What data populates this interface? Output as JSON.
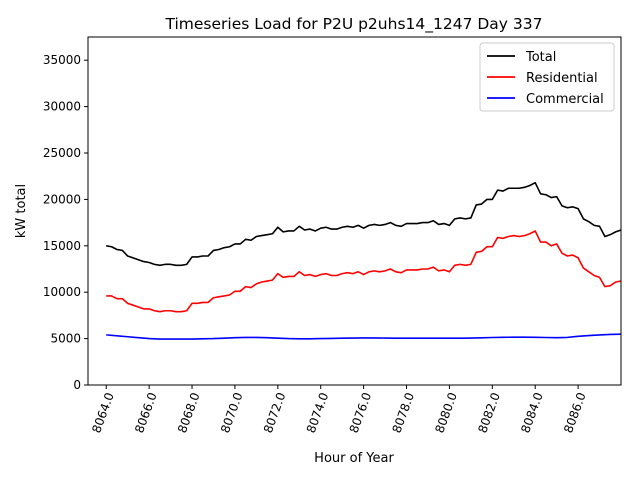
{
  "chart_data": {
    "type": "line",
    "title": "Timeseries Load for P2U p2uhs14_1247  Day 337",
    "xlabel": "Hour of Year",
    "ylabel": "kW total",
    "xlim": [
      8063.15,
      8088.0
    ],
    "ylim": [
      0,
      37500
    ],
    "grid": false,
    "legend_position": "top-right",
    "x_ticks": [
      8064,
      8066,
      8068,
      8070,
      8072,
      8074,
      8076,
      8078,
      8080,
      8082,
      8084,
      8086
    ],
    "x_tick_labels": [
      "8064.0",
      "8066.0",
      "8068.0",
      "8070.0",
      "8072.0",
      "8074.0",
      "8076.0",
      "8078.0",
      "8080.0",
      "8082.0",
      "8084.0",
      "8086.0"
    ],
    "y_ticks": [
      0,
      5000,
      10000,
      15000,
      20000,
      25000,
      30000,
      35000
    ],
    "y_tick_labels": [
      "0",
      "5000",
      "10000",
      "15000",
      "20000",
      "25000",
      "30000",
      "35000"
    ],
    "series": [
      {
        "name": "Total",
        "color": "#000000",
        "points": [
          [
            8064,
            15000
          ],
          [
            8064.25,
            14900
          ],
          [
            8064.5,
            14600
          ],
          [
            8064.75,
            14500
          ],
          [
            8065,
            13900
          ],
          [
            8065.25,
            13700
          ],
          [
            8065.5,
            13500
          ],
          [
            8065.75,
            13300
          ],
          [
            8066,
            13200
          ],
          [
            8066.25,
            13000
          ],
          [
            8066.5,
            12900
          ],
          [
            8066.75,
            13000
          ],
          [
            8067,
            13000
          ],
          [
            8067.25,
            12900
          ],
          [
            8067.5,
            12900
          ],
          [
            8067.75,
            13000
          ],
          [
            8068,
            13800
          ],
          [
            8068.25,
            13800
          ],
          [
            8068.5,
            13900
          ],
          [
            8068.75,
            13900
          ],
          [
            8069,
            14500
          ],
          [
            8069.25,
            14600
          ],
          [
            8069.5,
            14800
          ],
          [
            8069.75,
            14900
          ],
          [
            8070,
            15200
          ],
          [
            8070.25,
            15200
          ],
          [
            8070.5,
            15700
          ],
          [
            8070.75,
            15600
          ],
          [
            8071,
            16000
          ],
          [
            8071.25,
            16100
          ],
          [
            8071.5,
            16200
          ],
          [
            8071.75,
            16300
          ],
          [
            8072,
            17000
          ],
          [
            8072.25,
            16500
          ],
          [
            8072.5,
            16600
          ],
          [
            8072.75,
            16600
          ],
          [
            8073,
            17100
          ],
          [
            8073.25,
            16700
          ],
          [
            8073.5,
            16800
          ],
          [
            8073.75,
            16600
          ],
          [
            8074,
            16900
          ],
          [
            8074.25,
            17000
          ],
          [
            8074.5,
            16800
          ],
          [
            8074.75,
            16800
          ],
          [
            8075,
            17000
          ],
          [
            8075.25,
            17100
          ],
          [
            8075.5,
            17000
          ],
          [
            8075.75,
            17200
          ],
          [
            8076,
            16900
          ],
          [
            8076.25,
            17200
          ],
          [
            8076.5,
            17300
          ],
          [
            8076.75,
            17200
          ],
          [
            8077,
            17300
          ],
          [
            8077.25,
            17500
          ],
          [
            8077.5,
            17200
          ],
          [
            8077.75,
            17100
          ],
          [
            8078,
            17400
          ],
          [
            8078.25,
            17400
          ],
          [
            8078.5,
            17400
          ],
          [
            8078.75,
            17500
          ],
          [
            8079,
            17500
          ],
          [
            8079.25,
            17700
          ],
          [
            8079.5,
            17300
          ],
          [
            8079.75,
            17400
          ],
          [
            8080,
            17200
          ],
          [
            8080.25,
            17900
          ],
          [
            8080.5,
            18000
          ],
          [
            8080.75,
            17900
          ],
          [
            8081,
            18000
          ],
          [
            8081.25,
            19400
          ],
          [
            8081.5,
            19500
          ],
          [
            8081.75,
            20000
          ],
          [
            8082,
            20000
          ],
          [
            8082.25,
            21000
          ],
          [
            8082.5,
            20900
          ],
          [
            8082.75,
            21200
          ],
          [
            8083,
            21200
          ],
          [
            8083.25,
            21200
          ],
          [
            8083.5,
            21300
          ],
          [
            8083.75,
            21500
          ],
          [
            8084,
            21800
          ],
          [
            8084.25,
            20600
          ],
          [
            8084.5,
            20500
          ],
          [
            8084.75,
            20200
          ],
          [
            8085,
            20300
          ],
          [
            8085.25,
            19300
          ],
          [
            8085.5,
            19100
          ],
          [
            8085.75,
            19200
          ],
          [
            8086,
            19000
          ],
          [
            8086.25,
            17900
          ],
          [
            8086.5,
            17600
          ],
          [
            8086.75,
            17200
          ],
          [
            8087,
            17100
          ],
          [
            8087.25,
            16000
          ],
          [
            8087.5,
            16200
          ],
          [
            8087.75,
            16500
          ],
          [
            8088,
            16700
          ]
        ]
      },
      {
        "name": "Residential",
        "color": "#ff0000",
        "points": [
          [
            8064,
            9600
          ],
          [
            8064.25,
            9600
          ],
          [
            8064.5,
            9300
          ],
          [
            8064.75,
            9300
          ],
          [
            8065,
            8800
          ],
          [
            8065.25,
            8600
          ],
          [
            8065.5,
            8400
          ],
          [
            8065.75,
            8200
          ],
          [
            8066,
            8200
          ],
          [
            8066.25,
            8000
          ],
          [
            8066.5,
            7900
          ],
          [
            8066.75,
            8000
          ],
          [
            8067,
            8000
          ],
          [
            8067.25,
            7900
          ],
          [
            8067.5,
            7900
          ],
          [
            8067.75,
            8000
          ],
          [
            8068,
            8800
          ],
          [
            8068.25,
            8800
          ],
          [
            8068.5,
            8900
          ],
          [
            8068.75,
            8900
          ],
          [
            8069,
            9400
          ],
          [
            8069.25,
            9500
          ],
          [
            8069.5,
            9600
          ],
          [
            8069.75,
            9700
          ],
          [
            8070,
            10100
          ],
          [
            8070.25,
            10100
          ],
          [
            8070.5,
            10600
          ],
          [
            8070.75,
            10500
          ],
          [
            8071,
            10900
          ],
          [
            8071.25,
            11100
          ],
          [
            8071.5,
            11200
          ],
          [
            8071.75,
            11300
          ],
          [
            8072,
            12000
          ],
          [
            8072.25,
            11600
          ],
          [
            8072.5,
            11700
          ],
          [
            8072.75,
            11700
          ],
          [
            8073,
            12200
          ],
          [
            8073.25,
            11800
          ],
          [
            8073.5,
            11900
          ],
          [
            8073.75,
            11700
          ],
          [
            8074,
            11900
          ],
          [
            8074.25,
            12000
          ],
          [
            8074.5,
            11800
          ],
          [
            8074.75,
            11800
          ],
          [
            8075,
            12000
          ],
          [
            8075.25,
            12100
          ],
          [
            8075.5,
            12000
          ],
          [
            8075.75,
            12200
          ],
          [
            8076,
            11900
          ],
          [
            8076.25,
            12200
          ],
          [
            8076.5,
            12300
          ],
          [
            8076.75,
            12200
          ],
          [
            8077,
            12300
          ],
          [
            8077.25,
            12500
          ],
          [
            8077.5,
            12200
          ],
          [
            8077.75,
            12100
          ],
          [
            8078,
            12400
          ],
          [
            8078.25,
            12400
          ],
          [
            8078.5,
            12400
          ],
          [
            8078.75,
            12500
          ],
          [
            8079,
            12500
          ],
          [
            8079.25,
            12700
          ],
          [
            8079.5,
            12300
          ],
          [
            8079.75,
            12400
          ],
          [
            8080,
            12200
          ],
          [
            8080.25,
            12900
          ],
          [
            8080.5,
            13000
          ],
          [
            8080.75,
            12900
          ],
          [
            8081,
            13000
          ],
          [
            8081.25,
            14300
          ],
          [
            8081.5,
            14400
          ],
          [
            8081.75,
            14900
          ],
          [
            8082,
            14900
          ],
          [
            8082.25,
            15900
          ],
          [
            8082.5,
            15800
          ],
          [
            8082.75,
            16000
          ],
          [
            8083,
            16100
          ],
          [
            8083.25,
            16000
          ],
          [
            8083.5,
            16100
          ],
          [
            8083.75,
            16300
          ],
          [
            8084,
            16600
          ],
          [
            8084.25,
            15400
          ],
          [
            8084.5,
            15400
          ],
          [
            8084.75,
            15000
          ],
          [
            8085,
            15200
          ],
          [
            8085.25,
            14200
          ],
          [
            8085.5,
            13900
          ],
          [
            8085.75,
            14000
          ],
          [
            8086,
            13700
          ],
          [
            8086.25,
            12600
          ],
          [
            8086.5,
            12200
          ],
          [
            8086.75,
            11800
          ],
          [
            8087,
            11600
          ],
          [
            8087.25,
            10600
          ],
          [
            8087.5,
            10700
          ],
          [
            8087.75,
            11100
          ],
          [
            8088,
            11200
          ]
        ]
      },
      {
        "name": "Commercial",
        "color": "#0000ff",
        "points": [
          [
            8064,
            5400
          ],
          [
            8064.5,
            5300
          ],
          [
            8065,
            5200
          ],
          [
            8065.5,
            5100
          ],
          [
            8066,
            5000
          ],
          [
            8066.5,
            4950
          ],
          [
            8067,
            4950
          ],
          [
            8067.5,
            4950
          ],
          [
            8068,
            4950
          ],
          [
            8068.5,
            4980
          ],
          [
            8069,
            5000
          ],
          [
            8069.5,
            5050
          ],
          [
            8070,
            5100
          ],
          [
            8070.5,
            5130
          ],
          [
            8071,
            5130
          ],
          [
            8071.5,
            5100
          ],
          [
            8072,
            5050
          ],
          [
            8072.5,
            5000
          ],
          [
            8073,
            4980
          ],
          [
            8073.5,
            4980
          ],
          [
            8074,
            5000
          ],
          [
            8074.5,
            5020
          ],
          [
            8075,
            5050
          ],
          [
            8075.5,
            5060
          ],
          [
            8076,
            5070
          ],
          [
            8076.5,
            5070
          ],
          [
            8077,
            5060
          ],
          [
            8077.5,
            5050
          ],
          [
            8078,
            5050
          ],
          [
            8078.5,
            5050
          ],
          [
            8079,
            5040
          ],
          [
            8079.5,
            5040
          ],
          [
            8080,
            5040
          ],
          [
            8080.5,
            5050
          ],
          [
            8081,
            5060
          ],
          [
            8081.5,
            5080
          ],
          [
            8082,
            5120
          ],
          [
            8082.5,
            5140
          ],
          [
            8083,
            5150
          ],
          [
            8083.5,
            5150
          ],
          [
            8084,
            5140
          ],
          [
            8084.5,
            5120
          ],
          [
            8085,
            5100
          ],
          [
            8085.5,
            5130
          ],
          [
            8086,
            5250
          ],
          [
            8086.5,
            5330
          ],
          [
            8087,
            5400
          ],
          [
            8087.5,
            5450
          ],
          [
            8088,
            5480
          ]
        ]
      }
    ]
  }
}
